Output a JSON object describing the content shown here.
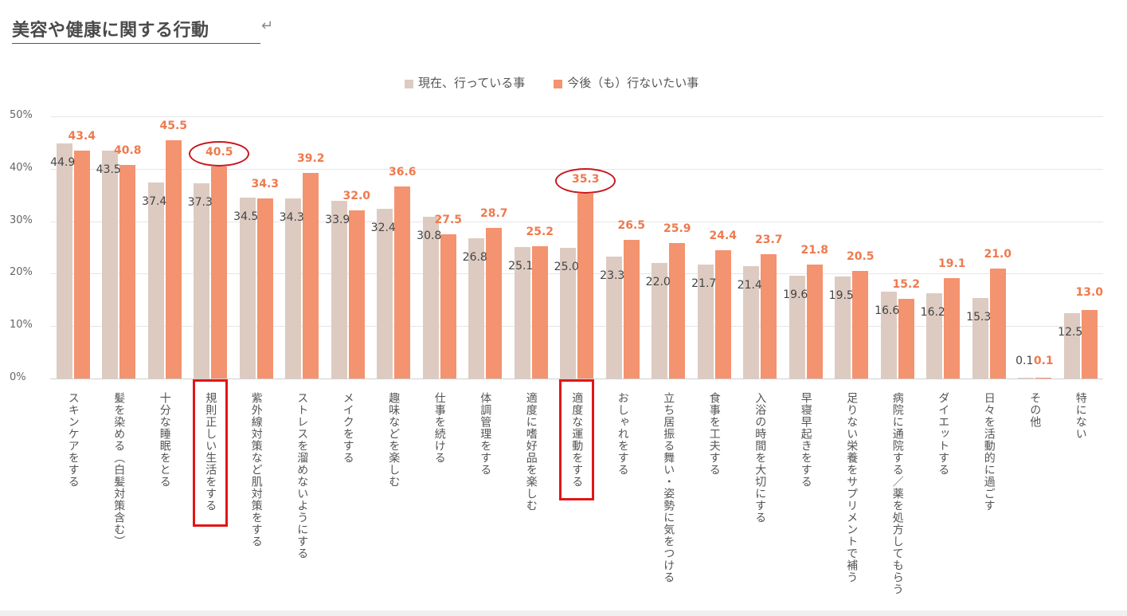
{
  "header": {
    "title": "美容や健康に関する行動",
    "return_mark": "↵"
  },
  "legend": {
    "items": [
      {
        "label": "現在、行っている事",
        "color": "#DDCBC1"
      },
      {
        "label": "今後（も）行ないたい事",
        "color": "#F4936F"
      }
    ]
  },
  "y_axis": {
    "ticks": [
      "50%",
      "40%",
      "30%",
      "20%",
      "10%",
      "0%"
    ]
  },
  "highlights": {
    "boxed_categories": [
      "規則正しい生活をする",
      "適度な運動をする"
    ],
    "circled_values": [
      "40.5",
      "35.3"
    ],
    "color": "#E01616"
  },
  "chart_data": {
    "type": "bar",
    "title": "美容や健康に関する行動",
    "xlabel": "",
    "ylabel": "",
    "ylim": [
      0,
      50
    ],
    "yticks": [
      "0%",
      "10%",
      "20%",
      "30%",
      "40%",
      "50%"
    ],
    "grid": true,
    "legend_position": "top",
    "categories": [
      "スキンケアをする",
      "髪を染める（白髪対策含む）",
      "十分な睡眠をとる",
      "規則正しい生活をする",
      "紫外線対策など肌対策をする",
      "ストレスを溜めないようにする",
      "メイクをする",
      "趣味などを楽しむ",
      "仕事を続ける",
      "体調管理をする",
      "適度に嗜好品を楽しむ",
      "適度な運動をする",
      "おしゃれをする",
      "立ち居振る舞い・姿勢に気をつける",
      "食事を工夫する",
      "入浴の時間を大切にする",
      "早寝早起きをする",
      "足りない栄養をサプリメントで補う",
      "病院に通院する／薬を処方してもらう",
      "ダイエットする",
      "日々を活動的に過ごす",
      "その他",
      "特にない"
    ],
    "series": [
      {
        "name": "現在、行っている事",
        "color": "#DDCBC1",
        "values": [
          44.9,
          43.5,
          37.4,
          37.3,
          34.5,
          34.3,
          33.9,
          32.4,
          30.8,
          26.8,
          25.1,
          25.0,
          23.3,
          22.0,
          21.7,
          21.4,
          19.6,
          19.5,
          16.6,
          16.2,
          15.3,
          0.1,
          12.5
        ],
        "labels": [
          "44.9",
          "43.5",
          "37.4",
          "37.3",
          "34.5",
          "34.3",
          "33.9",
          "32.4",
          "30.8",
          "26.8",
          "25.1",
          "25.0",
          "23.3",
          "22.0",
          "21.7",
          "21.4",
          "19.6",
          "19.5",
          "16.6",
          "16.2",
          "15.3",
          "0.1",
          "12.5"
        ]
      },
      {
        "name": "今後（も）行ないたい事",
        "color": "#F4936F",
        "values": [
          43.4,
          40.8,
          45.5,
          40.5,
          34.3,
          39.2,
          32.0,
          36.6,
          27.5,
          28.7,
          25.2,
          35.3,
          26.5,
          25.9,
          24.4,
          23.7,
          21.8,
          20.5,
          15.2,
          19.1,
          21.0,
          0.1,
          13.0
        ],
        "labels": [
          "43.4",
          "40.8",
          "45.5",
          "40.5",
          "34.3",
          "39.2",
          "32.0",
          "36.6",
          "27.5",
          "28.7",
          "25.2",
          "35.3",
          "26.5",
          "25.9",
          "24.4",
          "23.7",
          "21.8",
          "20.5",
          "15.2",
          "19.1",
          "21.0",
          "0.1",
          "13.0"
        ]
      }
    ]
  }
}
